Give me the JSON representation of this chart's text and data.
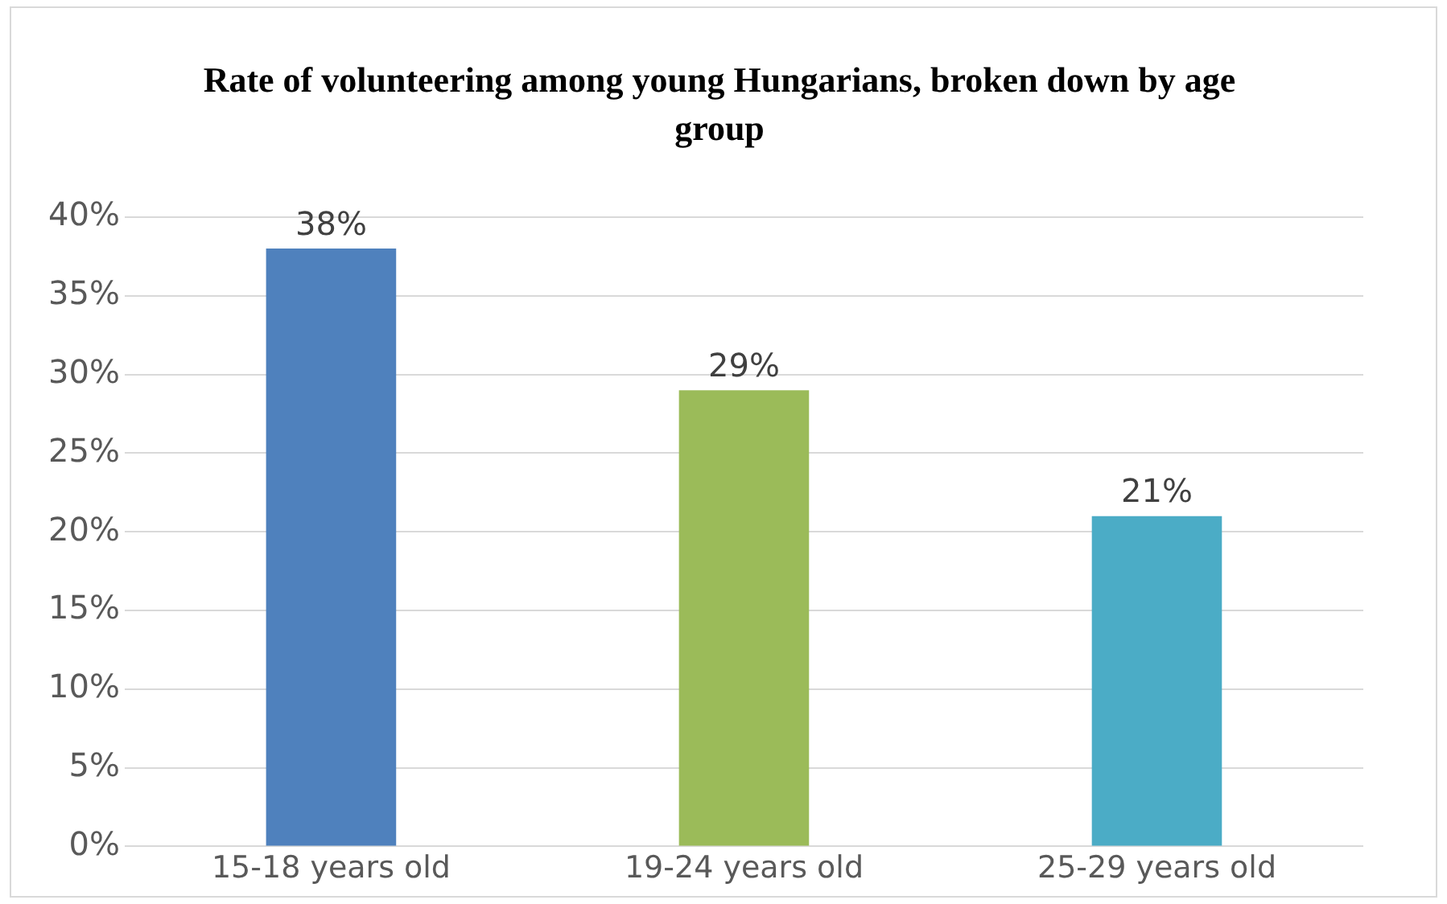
{
  "chart_data": {
    "type": "bar",
    "title": "Rate of volunteering among young Hungarians, broken down by age group",
    "categories": [
      "15-18 years old",
      "19-24 years old",
      "25-29 years old"
    ],
    "values": [
      38,
      29,
      21
    ],
    "colors": [
      "#4f81bd",
      "#9bbb59",
      "#4bacc6"
    ],
    "value_labels": [
      "38%",
      "29%",
      "21%"
    ],
    "ylim": [
      0,
      40
    ],
    "yticks": [
      {
        "value": 0,
        "label": "0%"
      },
      {
        "value": 5,
        "label": "5%"
      },
      {
        "value": 10,
        "label": "10%"
      },
      {
        "value": 15,
        "label": "15%"
      },
      {
        "value": 20,
        "label": "20%"
      },
      {
        "value": 25,
        "label": "25%"
      },
      {
        "value": 30,
        "label": "30%"
      },
      {
        "value": 35,
        "label": "35%"
      },
      {
        "value": 40,
        "label": "40%"
      }
    ],
    "grid": "y"
  }
}
